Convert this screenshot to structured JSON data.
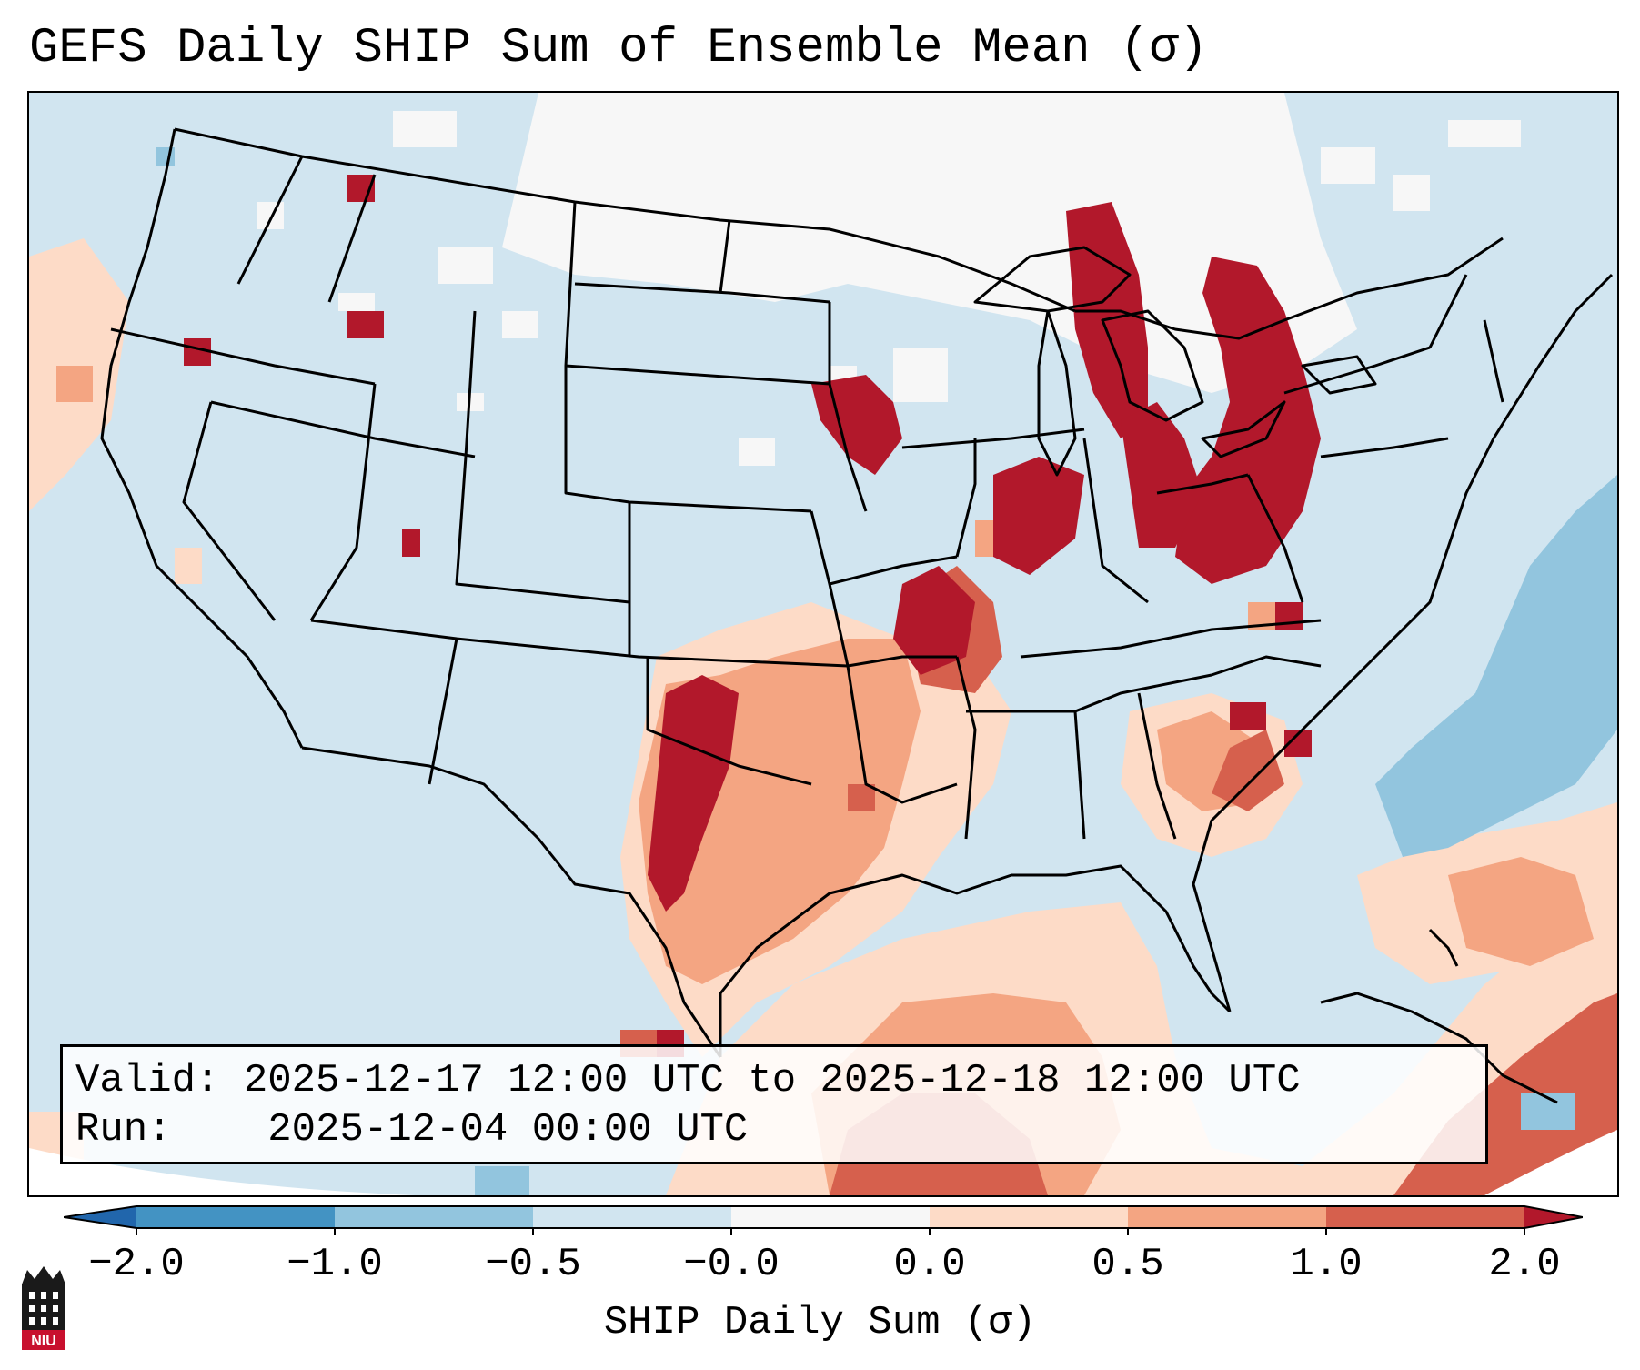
{
  "title": "GEFS Daily SHIP Sum of Ensemble Mean (σ)",
  "info": {
    "valid_label": "Valid:",
    "valid_value": "2025-12-17 12:00 UTC to 2025-12-18 12:00 UTC",
    "run_label": "Run:",
    "run_value": "2025-12-04 00:00 UTC"
  },
  "colorbar": {
    "label": "SHIP Daily Sum (σ)",
    "ticks": [
      "−2.0",
      "−1.0",
      "−0.5",
      "−0.0",
      "0.0",
      "0.5",
      "1.0",
      "2.0"
    ],
    "colors": {
      "below_-2": "#2166ac",
      "-2_to_-1": "#4393c3",
      "-1_to_-0.5": "#92c5de",
      "-0.5_to_0": "#d1e5f0",
      "0_neutral": "#f7f7f7",
      "0_to_0.5": "#fddbc7",
      "0.5_to_1": "#f4a582",
      "1_to_2": "#d6604d",
      "above_2": "#b2182b"
    }
  },
  "logo": {
    "text": "NIU",
    "icon": "niu-tower-logo-icon"
  }
}
